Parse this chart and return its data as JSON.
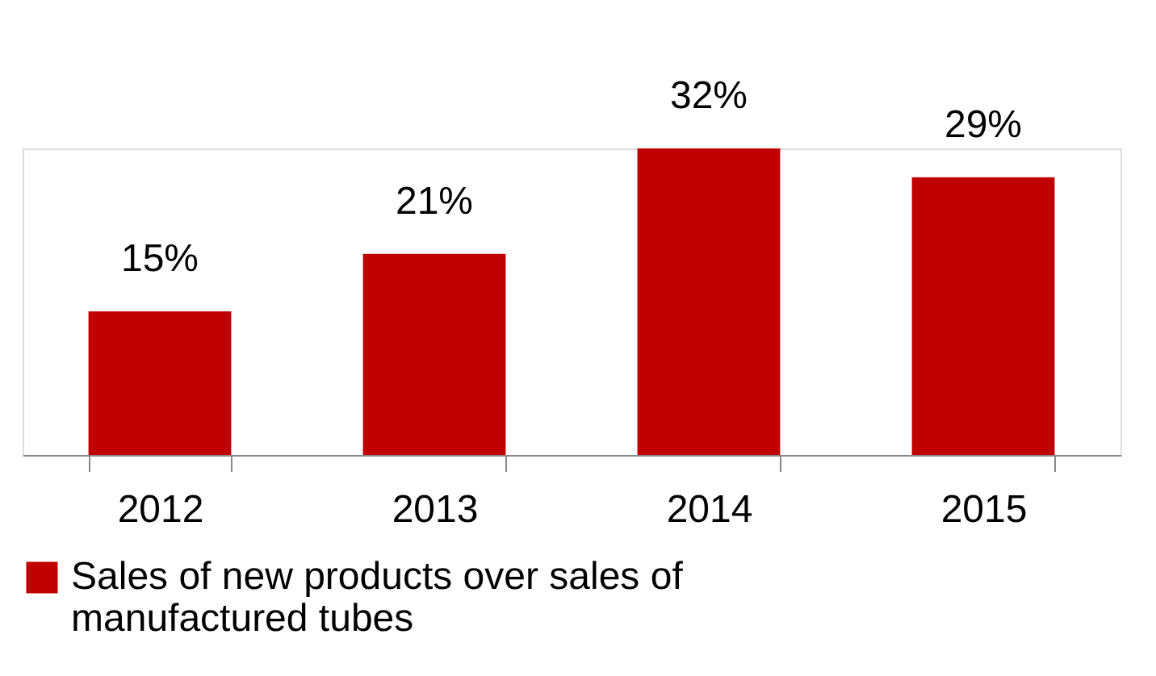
{
  "chart_data": {
    "type": "bar",
    "categories": [
      "2012",
      "2013",
      "2014",
      "2015"
    ],
    "series": [
      {
        "name": "Sales of new products over sales of manufactured tubes",
        "color": "#c00000",
        "values": [
          15,
          21,
          32,
          29
        ],
        "value_labels": [
          "15%",
          "21%",
          "32%",
          "29%"
        ]
      }
    ],
    "legend": "bottom",
    "grid": false
  }
}
